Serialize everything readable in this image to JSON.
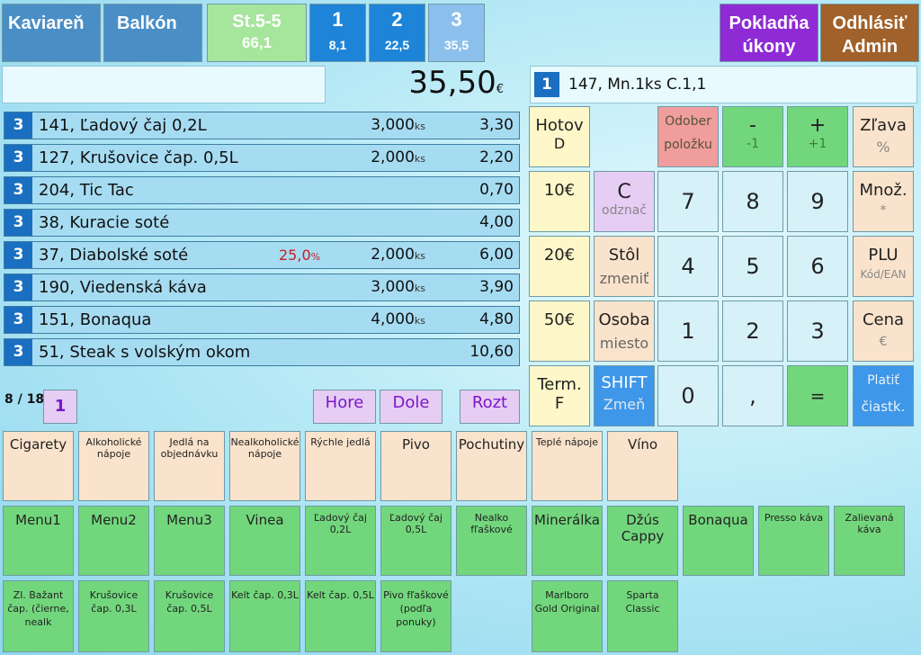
{
  "top": {
    "section1": "Kaviareň",
    "section2": "Balkón",
    "table": {
      "label": "St.5-5",
      "amount": "66,1"
    },
    "tabs": [
      {
        "num": "1",
        "amount": "8,1"
      },
      {
        "num": "2",
        "amount": "22,5"
      },
      {
        "num": "3",
        "amount": "35,5"
      }
    ],
    "register_line1": "Pokladňa",
    "register_line2": "úkony",
    "logout_line1": "Odhlásiť",
    "logout_line2": "Admin"
  },
  "summary": {
    "search_value": "",
    "total": "35,50",
    "currency": "€",
    "last_badge": "1",
    "last_text": "147, Mn.1ks C.1,1"
  },
  "order_items": [
    {
      "q": "3",
      "name": "141, Ľadový čaj 0,2L",
      "discount": "",
      "qty": "3,000",
      "unit": "ks",
      "price": "3,30"
    },
    {
      "q": "3",
      "name": "127, Krušovice čap. 0,5L",
      "discount": "",
      "qty": "2,000",
      "unit": "ks",
      "price": "2,20"
    },
    {
      "q": "3",
      "name": "204, Tic Tac",
      "discount": "",
      "qty": "",
      "unit": "",
      "price": "0,70"
    },
    {
      "q": "3",
      "name": "38, Kuracie soté",
      "discount": "",
      "qty": "",
      "unit": "",
      "price": "4,00"
    },
    {
      "q": "3",
      "name": "37, Diabolské soté",
      "discount": "25,0",
      "qty": "2,000",
      "unit": "ks",
      "price": "6,00"
    },
    {
      "q": "3",
      "name": "190, Viedenská káva",
      "discount": "",
      "qty": "3,000",
      "unit": "ks",
      "price": "3,90"
    },
    {
      "q": "3",
      "name": "151, Bonaqua",
      "discount": "",
      "qty": "4,000",
      "unit": "ks",
      "price": "4,80"
    },
    {
      "q": "3",
      "name": "51, Steak s volským okom",
      "discount": "",
      "qty": "",
      "unit": "",
      "price": "10,60"
    }
  ],
  "pager": {
    "count": "8 / 18",
    "page": "1",
    "up": "Hore",
    "down": "Dole",
    "split": "Rozt"
  },
  "keypad": {
    "cash_main": "Hotov",
    "cash_sub": "D",
    "cash10": "10€",
    "cash20": "20€",
    "cash50": "50€",
    "term_main": "Term.",
    "term_sub": "F",
    "remove_main": "Odober",
    "remove_sub": "položku",
    "minus_main": "-",
    "minus_sub": "-1",
    "plus_main": "+",
    "plus_sub": "+1",
    "disc_main": "Zľava",
    "disc_sub": "%",
    "clear_main": "C",
    "clear_sub": "odznač",
    "table_main": "Stôl",
    "table_sub": "zmeniť",
    "person_main": "Osoba",
    "person_sub": "miesto",
    "shift_main": "SHIFT",
    "shift_sub": "Zmeň",
    "d7": "7",
    "d8": "8",
    "d9": "9",
    "d4": "4",
    "d5": "5",
    "d6": "6",
    "d1": "1",
    "d2": "2",
    "d3": "3",
    "d0": "0",
    "comma": ",",
    "equals": "=",
    "qty_main": "Množ.",
    "qty_sub": "*",
    "plu_main": "PLU",
    "plu_sub": "Kód/EAN",
    "price_main": "Cena",
    "price_sub": "€",
    "partial_main": "Platiť",
    "partial_sub": "čiastk."
  },
  "categories": [
    "Cigarety",
    "Alkoholické nápoje",
    "Jedlá na objednávku",
    "Nealkoholické nápoje",
    "Rýchle jedlá",
    "Pivo",
    "Pochutiny",
    "Teplé nápoje",
    "Víno"
  ],
  "products_row1": [
    "Menu1",
    "Menu2",
    "Menu3",
    "Vinea",
    "Ľadový čaj 0,2L",
    "Ľadový čaj 0,5L",
    "Nealko fľaškové",
    "Minerálka",
    "Džús Cappy",
    "Bonaqua",
    "Presso káva",
    "Zalievaná káva"
  ],
  "products_row2": [
    "Zl. Bažant čap. (čierne, nealk",
    "Krušovice čap. 0,3L",
    "Krušovice čap. 0,5L",
    "Kelt čap. 0,3L",
    "Kelt čap. 0,5L",
    "Pivo fľaškové (podľa ponuky)",
    "",
    "Marlboro Gold Original",
    "Sparta Classic"
  ],
  "colors": {
    "tab_blue": "#1e84d8",
    "row_bg": "#a6dcf2",
    "qty_badge": "#1a6fc0",
    "green": "#72d77c",
    "peach": "#fae3cc",
    "purple": "#8e2bd4",
    "brown": "#a0612a",
    "discount_red": "#c81e1e"
  }
}
